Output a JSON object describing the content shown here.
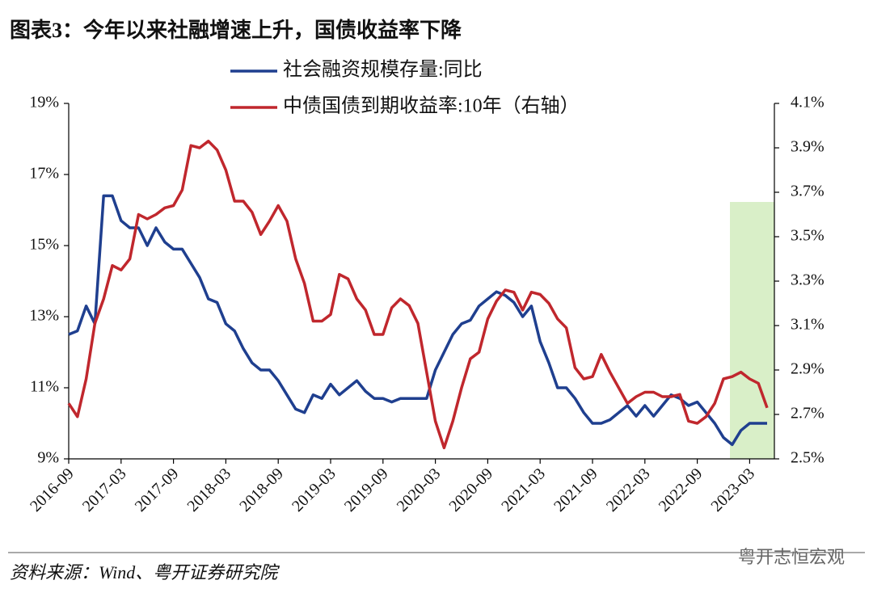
{
  "chart_data": {
    "type": "line",
    "title": "图表3：今年以来社融增速上升，国债收益率下降",
    "source": "资料来源：Wind、粤开证券研究院",
    "watermark": "粤开志恒宏观",
    "x": [
      "2016-09",
      "2016-10",
      "2016-11",
      "2016-12",
      "2017-01",
      "2017-02",
      "2017-03",
      "2017-04",
      "2017-05",
      "2017-06",
      "2017-07",
      "2017-08",
      "2017-09",
      "2017-10",
      "2017-11",
      "2017-12",
      "2018-01",
      "2018-02",
      "2018-03",
      "2018-04",
      "2018-05",
      "2018-06",
      "2018-07",
      "2018-08",
      "2018-09",
      "2018-10",
      "2018-11",
      "2018-12",
      "2019-01",
      "2019-02",
      "2019-03",
      "2019-04",
      "2019-05",
      "2019-06",
      "2019-07",
      "2019-08",
      "2019-09",
      "2019-10",
      "2019-11",
      "2019-12",
      "2020-01",
      "2020-02",
      "2020-03",
      "2020-04",
      "2020-05",
      "2020-06",
      "2020-07",
      "2020-08",
      "2020-09",
      "2020-10",
      "2020-11",
      "2020-12",
      "2021-01",
      "2021-02",
      "2021-03",
      "2021-04",
      "2021-05",
      "2021-06",
      "2021-07",
      "2021-08",
      "2021-09",
      "2021-10",
      "2021-11",
      "2021-12",
      "2022-01",
      "2022-02",
      "2022-03",
      "2022-04",
      "2022-05",
      "2022-06",
      "2022-07",
      "2022-08",
      "2022-09",
      "2022-10",
      "2022-11",
      "2022-12",
      "2023-01",
      "2023-02",
      "2023-03",
      "2023-04",
      "2023-05"
    ],
    "xticks": [
      "2016-09",
      "2017-03",
      "2017-09",
      "2018-03",
      "2018-09",
      "2019-03",
      "2019-09",
      "2020-03",
      "2020-09",
      "2021-03",
      "2021-09",
      "2022-03",
      "2022-09",
      "2023-03"
    ],
    "ylim": [
      9,
      19
    ],
    "yticks": [
      {
        "value": 9,
        "label": "9%"
      },
      {
        "value": 11,
        "label": "11%"
      },
      {
        "value": 13,
        "label": "13%"
      },
      {
        "value": 15,
        "label": "15%"
      },
      {
        "value": 17,
        "label": "17%"
      },
      {
        "value": 19,
        "label": "19%"
      }
    ],
    "y2lim": [
      2.5,
      4.1
    ],
    "y2ticks": [
      {
        "value": 2.5,
        "label": "2.5%"
      },
      {
        "value": 2.7,
        "label": "2.7%"
      },
      {
        "value": 2.9,
        "label": "2.9%"
      },
      {
        "value": 3.1,
        "label": "3.1%"
      },
      {
        "value": 3.3,
        "label": "3.3%"
      },
      {
        "value": 3.5,
        "label": "3.5%"
      },
      {
        "value": 3.7,
        "label": "3.7%"
      },
      {
        "value": 3.9,
        "label": "3.9%"
      },
      {
        "value": 4.1,
        "label": "4.1%"
      }
    ],
    "series": [
      {
        "name": "社会融资规模存量:同比",
        "color": "#1f3f8f",
        "axis": "y",
        "values": [
          12.5,
          12.6,
          13.3,
          12.8,
          16.4,
          16.4,
          15.7,
          15.5,
          15.5,
          15.0,
          15.5,
          15.1,
          14.9,
          14.9,
          14.5,
          14.1,
          13.5,
          13.4,
          12.8,
          12.6,
          12.1,
          11.7,
          11.5,
          11.5,
          11.2,
          10.8,
          10.4,
          10.3,
          10.8,
          10.7,
          11.1,
          10.8,
          11.0,
          11.2,
          10.9,
          10.7,
          10.7,
          10.6,
          10.7,
          10.7,
          10.7,
          10.7,
          11.5,
          12.0,
          12.5,
          12.8,
          12.9,
          13.3,
          13.5,
          13.7,
          13.6,
          13.4,
          13.0,
          13.3,
          12.3,
          11.7,
          11.0,
          11.0,
          10.7,
          10.3,
          10.0,
          10.0,
          10.1,
          10.3,
          10.5,
          10.2,
          10.5,
          10.2,
          10.5,
          10.8,
          10.7,
          10.5,
          10.6,
          10.3,
          10.0,
          9.6,
          9.4,
          9.8,
          10.0,
          10.0,
          10.0
        ]
      },
      {
        "name": "中债国债到期收益率:10年（右轴）",
        "color": "#c0272d",
        "axis": "y2",
        "values": [
          2.75,
          2.69,
          2.86,
          3.11,
          3.22,
          3.37,
          3.35,
          3.4,
          3.6,
          3.58,
          3.6,
          3.63,
          3.64,
          3.71,
          3.91,
          3.9,
          3.93,
          3.89,
          3.8,
          3.66,
          3.66,
          3.61,
          3.51,
          3.57,
          3.64,
          3.57,
          3.4,
          3.29,
          3.12,
          3.12,
          3.15,
          3.33,
          3.31,
          3.22,
          3.17,
          3.06,
          3.06,
          3.18,
          3.22,
          3.19,
          3.11,
          2.89,
          2.67,
          2.55,
          2.67,
          2.82,
          2.95,
          2.98,
          3.13,
          3.21,
          3.26,
          3.25,
          3.17,
          3.25,
          3.24,
          3.2,
          3.13,
          3.09,
          2.91,
          2.86,
          2.87,
          2.97,
          2.89,
          2.82,
          2.75,
          2.78,
          2.8,
          2.8,
          2.78,
          2.78,
          2.79,
          2.67,
          2.66,
          2.69,
          2.75,
          2.86,
          2.87,
          2.89,
          2.86,
          2.84,
          2.73
        ]
      }
    ]
  }
}
